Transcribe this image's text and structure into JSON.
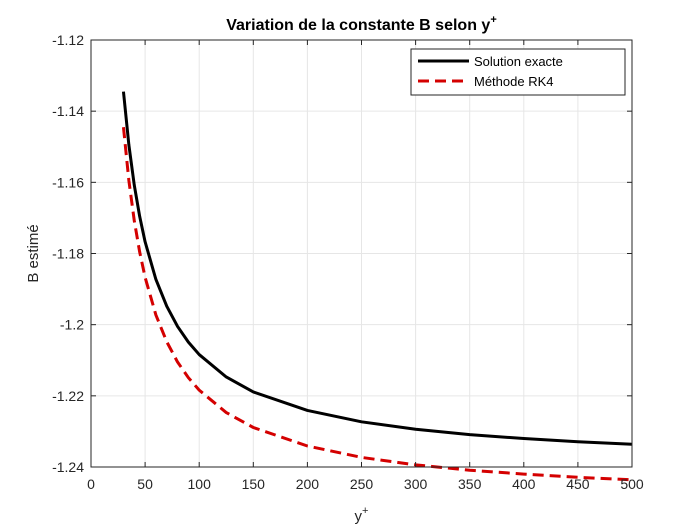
{
  "chart_data": {
    "type": "line",
    "title": "Variation de la constante B selon y",
    "title_sup": "+",
    "xlabel": "y",
    "xlabel_sup": "+",
    "ylabel": "B estimé",
    "xlim": [
      0,
      500
    ],
    "ylim": [
      -1.24,
      -1.12
    ],
    "xticks": [
      0,
      50,
      100,
      150,
      200,
      250,
      300,
      350,
      400,
      450,
      500
    ],
    "xtick_labels": [
      "0",
      "50",
      "100",
      "150",
      "200",
      "250",
      "300",
      "350",
      "400",
      "450",
      "500"
    ],
    "yticks": [
      -1.24,
      -1.22,
      -1.2,
      -1.18,
      -1.16,
      -1.14,
      -1.12
    ],
    "ytick_labels": [
      "-1.24",
      "-1.22",
      "-1.2",
      "-1.18",
      "-1.16",
      "-1.14",
      "-1.12"
    ],
    "grid": true,
    "legend_position": "top-right",
    "series": [
      {
        "name": "Solution exacte",
        "color": "#000000",
        "style": "solid",
        "x": [
          30,
          35,
          40,
          45,
          50,
          60,
          70,
          80,
          90,
          100,
          125,
          150,
          200,
          250,
          300,
          350,
          400,
          450,
          500
        ],
        "y": [
          -1.1345,
          -1.1495,
          -1.1608,
          -1.1696,
          -1.1767,
          -1.1873,
          -1.1948,
          -1.2005,
          -1.2049,
          -1.2084,
          -1.2147,
          -1.2189,
          -1.2241,
          -1.2273,
          -1.2294,
          -1.2309,
          -1.232,
          -1.2329,
          -1.2336
        ]
      },
      {
        "name": "Méthode RK4",
        "color": "#d40000",
        "style": "dashed",
        "x": [
          30,
          35,
          40,
          45,
          50,
          60,
          70,
          80,
          90,
          100,
          125,
          150,
          200,
          250,
          300,
          350,
          400,
          450,
          500
        ],
        "y": [
          -1.1445,
          -1.1595,
          -1.1708,
          -1.1796,
          -1.1867,
          -1.1973,
          -1.2048,
          -1.2105,
          -1.2149,
          -1.2184,
          -1.2247,
          -1.2289,
          -1.2341,
          -1.2373,
          -1.2394,
          -1.2409,
          -1.242,
          -1.2429,
          -1.2436
        ]
      }
    ]
  }
}
